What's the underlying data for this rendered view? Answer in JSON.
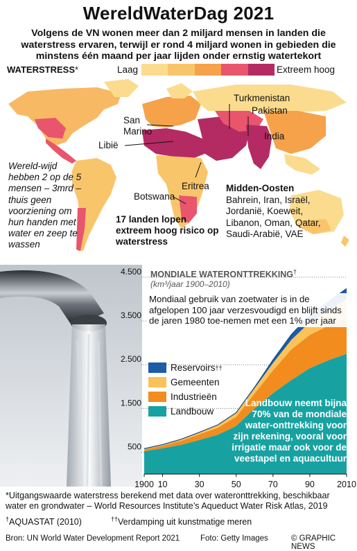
{
  "header": {
    "title": "WereldWaterDag 2021",
    "subtitle": "Volgens de VN wonen meer dan 2 miljard mensen in landen die waterstress ervaren, terwijl er rond 4 miljard wonen in gebieden die minstens één maand per jaar lijden onder ernstig watertekort"
  },
  "map": {
    "title": "Waterstress",
    "title_mark": "*",
    "legend_low": "Laag",
    "legend_high": "Extreem hoog",
    "scale_colors": [
      "#fbdc8e",
      "#f9c56a",
      "#f5a24b",
      "#e8556d",
      "#b42b63"
    ],
    "labels": {
      "turkmenistan": "Turkmenistan",
      "pakistan": "Pakistan",
      "india": "India",
      "san_marino": "San Marino",
      "libie": "Libië",
      "eritrea": "Eritrea",
      "botswana": "Botswana"
    },
    "note_left": "Wereld-wijd hebben 2 op de 5 mensen – 3mrd – thuis geen voorziening om hun handen met water en zeep te wassen",
    "seventeen": "17 landen lopen extreem hoog risico op waterstress",
    "middle_east_title": "Midden-Oosten",
    "middle_east_list": "Bahrein, Iran, Israël, Jordanië, Koeweit, Libanon, Oman, Qatar, Saudi-Arabië, VAE"
  },
  "chart_data": {
    "type": "area",
    "title": "Mondiale Wateronttrekking",
    "title_mark": "†",
    "unit": "(km³/jaar 1900–2010)",
    "x": [
      1900,
      1910,
      1920,
      1930,
      1940,
      1950,
      1960,
      1970,
      1980,
      1990,
      2000,
      2010
    ],
    "x_tick_labels": [
      "1900",
      "10",
      "30",
      "50",
      "70",
      "90",
      "2010"
    ],
    "x_tick_values": [
      1900,
      1910,
      1930,
      1950,
      1970,
      1990,
      2010
    ],
    "y_ticks": [
      500,
      1500,
      2500,
      3500,
      4500
    ],
    "y_tick_labels": [
      "500",
      "1.500",
      "2.500",
      "3.500",
      "4.500"
    ],
    "ylim": [
      0,
      4500
    ],
    "stacked": true,
    "series": [
      {
        "name": "Landbouw",
        "color": "#17a2a1",
        "values": [
          520,
          590,
          670,
          780,
          900,
          1100,
          1500,
          1850,
          2150,
          2420,
          2600,
          2750
        ]
      },
      {
        "name": "Industrieën",
        "color": "#f28c1f",
        "values": [
          40,
          60,
          90,
          130,
          160,
          210,
          340,
          520,
          700,
          760,
          790,
          830
        ]
      },
      {
        "name": "Gemeenten",
        "color": "#fbc258",
        "values": [
          20,
          25,
          35,
          45,
          60,
          85,
          120,
          170,
          220,
          290,
          350,
          420
        ]
      },
      {
        "name": "Reservoirs",
        "mark": "††",
        "color": "#1b5da6",
        "values": [
          0,
          0,
          0,
          0,
          5,
          10,
          25,
          70,
          120,
          160,
          200,
          240
        ]
      }
    ],
    "annotation": "Mondiaal gebruik van zoetwater is in de afgelopen 100 jaar verzesvoudigd en blijft sinds de jaren 1980 toe-nemen met een 1% per jaar",
    "agri_note": "Landbouw neemt bijna 70% van de mondiale water-onttrekking voor zijn rekening, vooral voor irrigatie maar ook voor de veestapel en aquacultuur"
  },
  "footer": {
    "footnote1": "*Uitgangswaarde waterstress berekend met data over wateronttrekking, beschikbaar water en grondwater – World Resources Institute’s Aqueduct Water Risk Atlas, 2019",
    "footnote2_mark": "†",
    "footnote2": "AQUASTAT (2010)",
    "footnote3_mark": "††",
    "footnote3": "Verdamping uit kunstmatige meren",
    "source": "Bron: UN World Water Development Report 2021",
    "credit": "Foto: Getty Images",
    "brand": "© GRAPHIC NEWS"
  }
}
